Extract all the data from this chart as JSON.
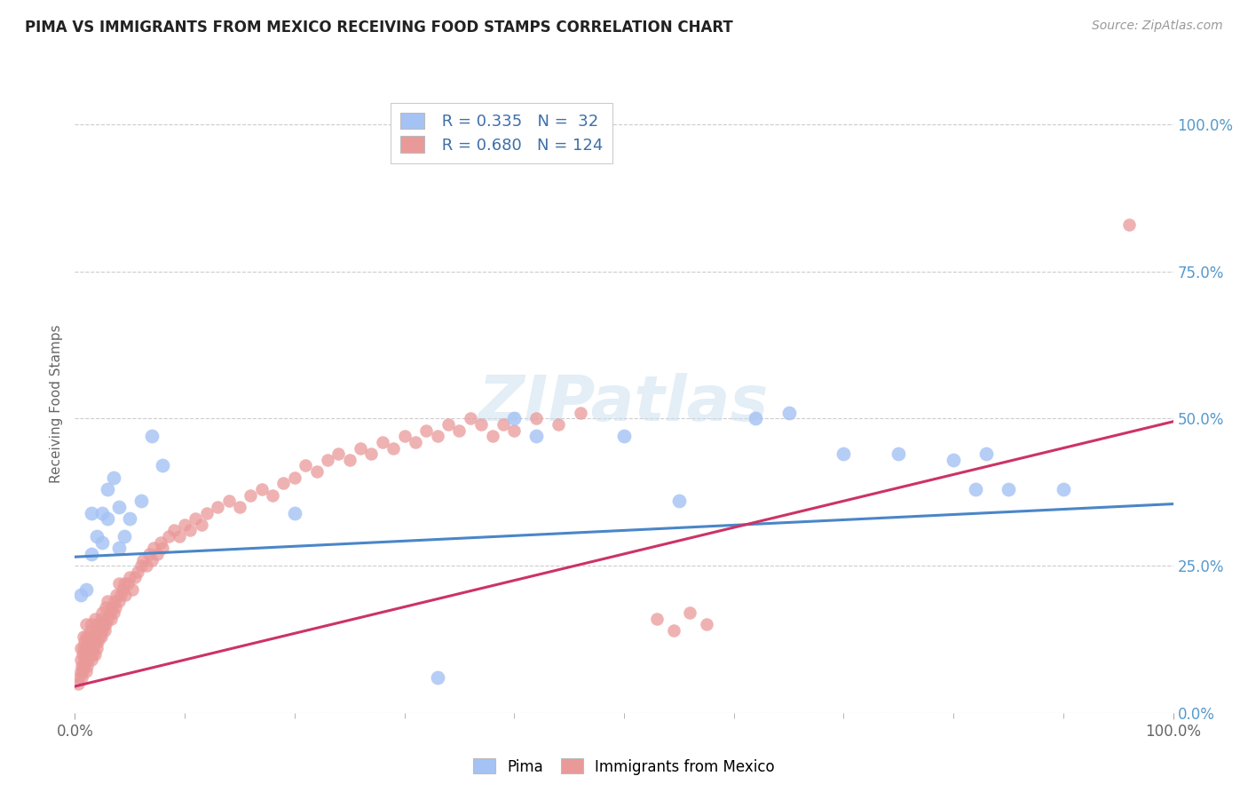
{
  "title": "PIMA VS IMMIGRANTS FROM MEXICO RECEIVING FOOD STAMPS CORRELATION CHART",
  "source": "Source: ZipAtlas.com",
  "ylabel": "Receiving Food Stamps",
  "yticks": [
    "0.0%",
    "25.0%",
    "50.0%",
    "75.0%",
    "100.0%"
  ],
  "ytick_vals": [
    0.0,
    0.25,
    0.5,
    0.75,
    1.0
  ],
  "xticks_minor": [
    0.0,
    0.1,
    0.2,
    0.3,
    0.4,
    0.5,
    0.6,
    0.7,
    0.8,
    0.9,
    1.0
  ],
  "legend_blue_r": "0.335",
  "legend_blue_n": "32",
  "legend_pink_r": "0.680",
  "legend_pink_n": "124",
  "blue_color": "#a4c2f4",
  "pink_color": "#ea9999",
  "blue_line_color": "#4a86c8",
  "pink_line_color": "#cc3366",
  "watermark": "ZIPatlas",
  "blue_line": [
    [
      0.0,
      0.265
    ],
    [
      1.0,
      0.355
    ]
  ],
  "pink_line": [
    [
      0.0,
      0.045
    ],
    [
      1.0,
      0.495
    ]
  ],
  "blue_points": [
    [
      0.005,
      0.2
    ],
    [
      0.01,
      0.21
    ],
    [
      0.015,
      0.27
    ],
    [
      0.015,
      0.34
    ],
    [
      0.02,
      0.3
    ],
    [
      0.025,
      0.34
    ],
    [
      0.025,
      0.29
    ],
    [
      0.03,
      0.33
    ],
    [
      0.03,
      0.38
    ],
    [
      0.035,
      0.4
    ],
    [
      0.04,
      0.28
    ],
    [
      0.04,
      0.35
    ],
    [
      0.045,
      0.3
    ],
    [
      0.05,
      0.33
    ],
    [
      0.06,
      0.36
    ],
    [
      0.07,
      0.47
    ],
    [
      0.08,
      0.42
    ],
    [
      0.4,
      0.5
    ],
    [
      0.42,
      0.47
    ],
    [
      0.5,
      0.47
    ],
    [
      0.55,
      0.36
    ],
    [
      0.62,
      0.5
    ],
    [
      0.65,
      0.51
    ],
    [
      0.7,
      0.44
    ],
    [
      0.75,
      0.44
    ],
    [
      0.8,
      0.43
    ],
    [
      0.82,
      0.38
    ],
    [
      0.83,
      0.44
    ],
    [
      0.85,
      0.38
    ],
    [
      0.9,
      0.38
    ],
    [
      0.33,
      0.06
    ],
    [
      0.2,
      0.34
    ]
  ],
  "pink_points": [
    [
      0.003,
      0.05
    ],
    [
      0.004,
      0.06
    ],
    [
      0.005,
      0.07
    ],
    [
      0.005,
      0.09
    ],
    [
      0.005,
      0.11
    ],
    [
      0.006,
      0.06
    ],
    [
      0.006,
      0.08
    ],
    [
      0.007,
      0.07
    ],
    [
      0.007,
      0.1
    ],
    [
      0.008,
      0.08
    ],
    [
      0.008,
      0.11
    ],
    [
      0.008,
      0.13
    ],
    [
      0.009,
      0.09
    ],
    [
      0.009,
      0.12
    ],
    [
      0.01,
      0.07
    ],
    [
      0.01,
      0.1
    ],
    [
      0.01,
      0.13
    ],
    [
      0.01,
      0.15
    ],
    [
      0.011,
      0.08
    ],
    [
      0.011,
      0.11
    ],
    [
      0.012,
      0.09
    ],
    [
      0.012,
      0.12
    ],
    [
      0.013,
      0.1
    ],
    [
      0.013,
      0.13
    ],
    [
      0.014,
      0.11
    ],
    [
      0.014,
      0.14
    ],
    [
      0.015,
      0.09
    ],
    [
      0.015,
      0.12
    ],
    [
      0.015,
      0.15
    ],
    [
      0.016,
      0.1
    ],
    [
      0.016,
      0.13
    ],
    [
      0.017,
      0.11
    ],
    [
      0.018,
      0.1
    ],
    [
      0.018,
      0.13
    ],
    [
      0.018,
      0.16
    ],
    [
      0.019,
      0.12
    ],
    [
      0.02,
      0.11
    ],
    [
      0.02,
      0.14
    ],
    [
      0.021,
      0.12
    ],
    [
      0.021,
      0.15
    ],
    [
      0.022,
      0.13
    ],
    [
      0.023,
      0.14
    ],
    [
      0.024,
      0.13
    ],
    [
      0.024,
      0.16
    ],
    [
      0.025,
      0.14
    ],
    [
      0.025,
      0.17
    ],
    [
      0.026,
      0.15
    ],
    [
      0.027,
      0.14
    ],
    [
      0.028,
      0.15
    ],
    [
      0.028,
      0.18
    ],
    [
      0.03,
      0.16
    ],
    [
      0.03,
      0.19
    ],
    [
      0.032,
      0.17
    ],
    [
      0.033,
      0.16
    ],
    [
      0.034,
      0.18
    ],
    [
      0.035,
      0.17
    ],
    [
      0.036,
      0.19
    ],
    [
      0.037,
      0.18
    ],
    [
      0.038,
      0.2
    ],
    [
      0.04,
      0.19
    ],
    [
      0.04,
      0.22
    ],
    [
      0.042,
      0.2
    ],
    [
      0.043,
      0.21
    ],
    [
      0.045,
      0.22
    ],
    [
      0.046,
      0.2
    ],
    [
      0.048,
      0.22
    ],
    [
      0.05,
      0.23
    ],
    [
      0.052,
      0.21
    ],
    [
      0.055,
      0.23
    ],
    [
      0.057,
      0.24
    ],
    [
      0.06,
      0.25
    ],
    [
      0.062,
      0.26
    ],
    [
      0.065,
      0.25
    ],
    [
      0.068,
      0.27
    ],
    [
      0.07,
      0.26
    ],
    [
      0.072,
      0.28
    ],
    [
      0.075,
      0.27
    ],
    [
      0.078,
      0.29
    ],
    [
      0.08,
      0.28
    ],
    [
      0.085,
      0.3
    ],
    [
      0.09,
      0.31
    ],
    [
      0.095,
      0.3
    ],
    [
      0.1,
      0.32
    ],
    [
      0.105,
      0.31
    ],
    [
      0.11,
      0.33
    ],
    [
      0.115,
      0.32
    ],
    [
      0.12,
      0.34
    ],
    [
      0.13,
      0.35
    ],
    [
      0.14,
      0.36
    ],
    [
      0.15,
      0.35
    ],
    [
      0.16,
      0.37
    ],
    [
      0.17,
      0.38
    ],
    [
      0.18,
      0.37
    ],
    [
      0.19,
      0.39
    ],
    [
      0.2,
      0.4
    ],
    [
      0.21,
      0.42
    ],
    [
      0.22,
      0.41
    ],
    [
      0.23,
      0.43
    ],
    [
      0.24,
      0.44
    ],
    [
      0.25,
      0.43
    ],
    [
      0.26,
      0.45
    ],
    [
      0.27,
      0.44
    ],
    [
      0.28,
      0.46
    ],
    [
      0.29,
      0.45
    ],
    [
      0.3,
      0.47
    ],
    [
      0.31,
      0.46
    ],
    [
      0.32,
      0.48
    ],
    [
      0.33,
      0.47
    ],
    [
      0.34,
      0.49
    ],
    [
      0.35,
      0.48
    ],
    [
      0.36,
      0.5
    ],
    [
      0.37,
      0.49
    ],
    [
      0.38,
      0.47
    ],
    [
      0.39,
      0.49
    ],
    [
      0.4,
      0.48
    ],
    [
      0.42,
      0.5
    ],
    [
      0.44,
      0.49
    ],
    [
      0.46,
      0.51
    ],
    [
      0.53,
      0.16
    ],
    [
      0.545,
      0.14
    ],
    [
      0.56,
      0.17
    ],
    [
      0.575,
      0.15
    ],
    [
      0.96,
      0.83
    ]
  ]
}
